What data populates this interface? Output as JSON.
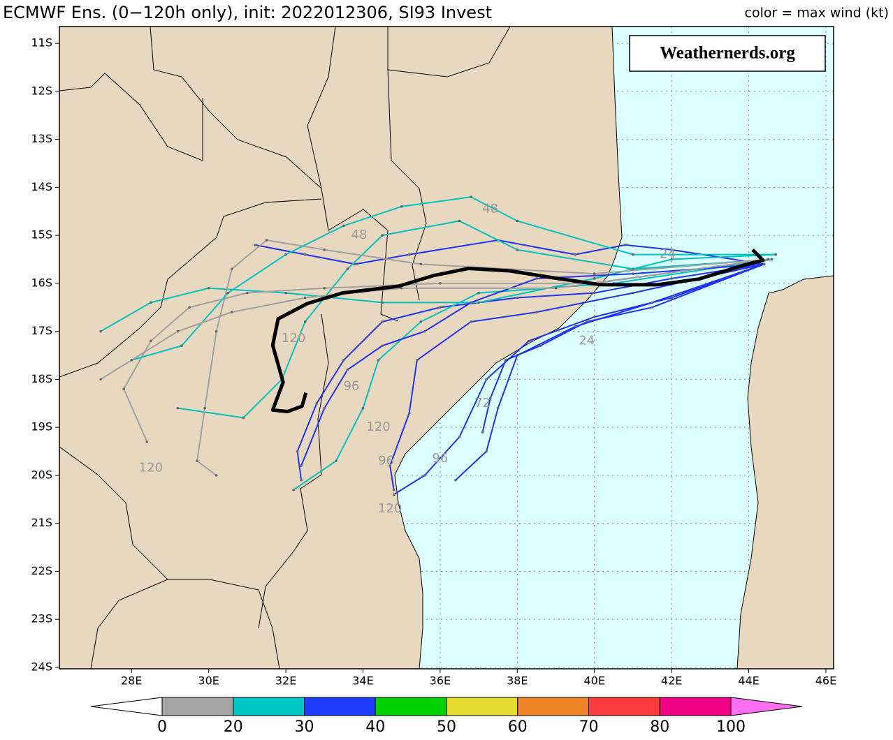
{
  "map": {
    "title": "ECMWF Ens. (0−120h only), init: 2022012306, SI93 Invest",
    "subtitle": "color = max wind (kt)",
    "watermark": "Weathernerds.org",
    "xlim": [
      26.13,
      46.2
    ],
    "ylim": [
      -10.65,
      -24.03
    ],
    "xticks": [
      {
        "value": 28,
        "label": "28E"
      },
      {
        "value": 30,
        "label": "30E"
      },
      {
        "value": 32,
        "label": "32E"
      },
      {
        "value": 34,
        "label": "34E"
      },
      {
        "value": 36,
        "label": "36E"
      },
      {
        "value": 38,
        "label": "38E"
      },
      {
        "value": 40,
        "label": "40E"
      },
      {
        "value": 42,
        "label": "42E"
      },
      {
        "value": 44,
        "label": "44E"
      },
      {
        "value": 46,
        "label": "46E"
      }
    ],
    "yticks": [
      {
        "value": -11,
        "label": "11S"
      },
      {
        "value": -12,
        "label": "12S"
      },
      {
        "value": -13,
        "label": "13S"
      },
      {
        "value": -14,
        "label": "14S"
      },
      {
        "value": -15,
        "label": "15S"
      },
      {
        "value": -16,
        "label": "16S"
      },
      {
        "value": -17,
        "label": "17S"
      },
      {
        "value": -18,
        "label": "18S"
      },
      {
        "value": -19,
        "label": "19S"
      },
      {
        "value": -20,
        "label": "20S"
      },
      {
        "value": -21,
        "label": "21S"
      },
      {
        "value": -22,
        "label": "22S"
      },
      {
        "value": -23,
        "label": "23S"
      },
      {
        "value": -24,
        "label": "24S"
      }
    ],
    "grid": true,
    "tracks": [
      {
        "color": "#2233ee",
        "lon": [
          44.4,
          42,
          40,
          38,
          36,
          34.5,
          33.5,
          32.8,
          32.3,
          32.4
        ],
        "lat": [
          -15.6,
          -15.9,
          -16.2,
          -16.3,
          -16.5,
          -16.8,
          -17.6,
          -18.5,
          -19.5,
          -20.1
        ]
      },
      {
        "color": "#2233ee",
        "lon": [
          44.4,
          42,
          40,
          38.3,
          37.2,
          36.5,
          35.6,
          34.8
        ],
        "lat": [
          -15.6,
          -16.3,
          -16.7,
          -17.2,
          -18,
          -19.2,
          -20,
          -20.4
        ]
      },
      {
        "color": "#2233ee",
        "lon": [
          44.4,
          41.5,
          39.5,
          38,
          37.5,
          37.2,
          36.4
        ],
        "lat": [
          -15.6,
          -16.4,
          -16.9,
          -17.5,
          -18.6,
          -19.5,
          -20.1
        ]
      },
      {
        "color": "#2233ee",
        "lon": [
          44.4,
          42,
          40.8,
          39.5,
          37.5,
          35.2,
          33.8,
          32.5,
          31.2
        ],
        "lat": [
          -15.6,
          -15.3,
          -15.2,
          -15.4,
          -15.1,
          -15.4,
          -15.6,
          -15.4,
          -15.2
        ]
      },
      {
        "color": "#00c0c0",
        "lon": [
          44.7,
          42,
          40,
          37,
          34.5,
          32,
          30,
          28.5,
          27.2
        ],
        "lat": [
          -15.4,
          -15.5,
          -15.9,
          -16.4,
          -16.4,
          -16.2,
          -16.1,
          -16.4,
          -17
        ]
      },
      {
        "color": "#00c0c0",
        "lon": [
          44.6,
          41,
          38,
          36.5,
          34.5,
          33.6,
          32.5,
          31.9,
          30.9,
          29.2
        ],
        "lat": [
          -15.5,
          -15.7,
          -15.3,
          -14.7,
          -15,
          -15.7,
          -16.8,
          -18,
          -18.8,
          -18.6
        ]
      },
      {
        "color": "#00c0c0",
        "lon": [
          44.6,
          40.5,
          37,
          35.5,
          34.4,
          34,
          33.3,
          32.2
        ],
        "lat": [
          -15.5,
          -16,
          -16.2,
          -16.8,
          -17.6,
          -18.6,
          -19.7,
          -20.3
        ]
      },
      {
        "color": "#a0a0a0",
        "lon": [
          44.5,
          40,
          36,
          33,
          31,
          29.5,
          28.5,
          27.8,
          28.4
        ],
        "lat": [
          -15.5,
          -16,
          -16,
          -16.1,
          -16.2,
          -16.5,
          -17.2,
          -18.2,
          -19.3
        ]
      },
      {
        "color": "#a0a0a0",
        "lon": [
          44.5,
          40,
          35.5,
          33,
          31.5,
          30.6,
          30.2,
          29.9,
          29.7,
          30.2
        ],
        "lat": [
          -15.5,
          -15.8,
          -15.6,
          -15.3,
          -15.1,
          -15.7,
          -17,
          -18.6,
          -19.7,
          -20
        ]
      },
      {
        "color": "#2233ee",
        "lon": [
          44.4,
          41,
          38.5,
          36.8,
          35.4,
          35.2,
          34.7,
          34.8
        ],
        "lat": [
          -15.6,
          -16.2,
          -16.6,
          -16.8,
          -17.6,
          -18.7,
          -19.8,
          -20.3
        ]
      },
      {
        "color": "#2233ee",
        "lon": [
          44.4,
          41.5,
          39.8,
          38.6,
          37.7,
          37.3,
          37.1
        ],
        "lat": [
          -15.6,
          -16.5,
          -16.8,
          -17.3,
          -17.6,
          -18.4,
          -19.1
        ]
      },
      {
        "color": "#00c0c0",
        "lon": [
          44.7,
          41,
          38,
          36.8,
          35,
          33.5,
          32,
          30.5,
          29.3,
          28
        ],
        "lat": [
          -15.4,
          -15.4,
          -14.7,
          -14.2,
          -14.4,
          -14.8,
          -15.4,
          -16.2,
          -17.3,
          -17.6
        ]
      },
      {
        "color": "#2233ee",
        "lon": [
          44.4,
          41,
          38.5,
          36.8,
          35.6,
          34.5,
          33.6,
          33,
          32.4
        ],
        "lat": [
          -15.6,
          -15.8,
          -15.9,
          -16.4,
          -17,
          -17.3,
          -17.8,
          -18.6,
          -19.8
        ]
      },
      {
        "color": "#a0a0a0",
        "lon": [
          44.5,
          39,
          35,
          32.5,
          30.6,
          29.2,
          28,
          27.2
        ],
        "lat": [
          -15.5,
          -16.1,
          -16.1,
          -16.3,
          -16.6,
          -17,
          -17.6,
          -18
        ]
      }
    ],
    "mean_track": {
      "color": "#000000",
      "lon": [
        44.1,
        44.37,
        43.88,
        42.71,
        41.62,
        40.17,
        38.9,
        37.81,
        36.73,
        35.82,
        34.92,
        33.47,
        32.56,
        31.8,
        31.66,
        31.93,
        31.66,
        32.05,
        32.42,
        32.52
      ],
      "lat": [
        -15.3,
        -15.52,
        -15.62,
        -15.91,
        -16.03,
        -16.03,
        -15.88,
        -15.74,
        -15.69,
        -15.84,
        -16.06,
        -16.2,
        -16.42,
        -16.74,
        -17.29,
        -18.06,
        -18.64,
        -18.67,
        -18.56,
        -18.28
      ]
    },
    "hour_labels": {
      "color": "#999999",
      "items": [
        {
          "label": "48",
          "lon": 37.3,
          "lat": -14.45
        },
        {
          "label": "48",
          "lon": 33.9,
          "lat": -15.0
        },
        {
          "label": "24",
          "lon": 41.9,
          "lat": -15.4
        },
        {
          "label": "24",
          "lon": 39.8,
          "lat": -17.2
        },
        {
          "label": "72",
          "lon": 37.1,
          "lat": -18.5
        },
        {
          "label": "96",
          "lon": 33.7,
          "lat": -18.15
        },
        {
          "label": "96",
          "lon": 34.6,
          "lat": -19.7
        },
        {
          "label": "96",
          "lon": 36.0,
          "lat": -19.65
        },
        {
          "label": "120",
          "lon": 34.4,
          "lat": -19.0
        },
        {
          "label": "120",
          "lon": 28.5,
          "lat": -19.85
        },
        {
          "label": "120",
          "lon": 34.7,
          "lat": -20.7
        },
        {
          "label": "120",
          "lon": 32.2,
          "lat": -17.15
        }
      ]
    },
    "colorbar": {
      "levels": [
        0,
        20,
        30,
        40,
        50,
        60,
        70,
        80,
        100
      ],
      "colors": [
        "#a5a5a5",
        "#00c6c6",
        "#1e3cff",
        "#00d200",
        "#e6dc32",
        "#f08228",
        "#fa3c3c",
        "#f00082"
      ],
      "under_color": "#ffffff",
      "over_color": "#ff6ef0"
    }
  }
}
